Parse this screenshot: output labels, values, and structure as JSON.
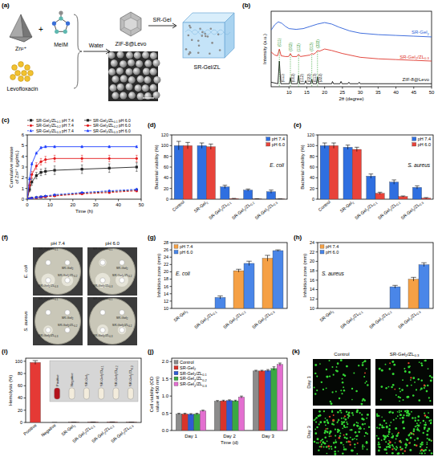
{
  "panel_labels": [
    "(a)",
    "(b)",
    "(c)",
    "(d)",
    "(e)",
    "(f)",
    "(g)",
    "(h)",
    "(i)",
    "(j)",
    "(k)"
  ],
  "schematic": {
    "reagents": [
      "Zn²⁺",
      "MeIM",
      "Levofloxacin"
    ],
    "plus": "+",
    "step1": "Water",
    "product": "ZIF-8@Levo",
    "step2": "SR-Gel",
    "final": "SR-Gel/ZL"
  },
  "plates": {
    "columns": [
      "pH 7.4",
      "pH 6.0"
    ],
    "rows": [
      "E. coli",
      "S. aureus"
    ],
    "disks": [
      "SR-Gel2/ZL0.1",
      "SR-Gel2",
      "SR-Gel2/ZL0.3",
      "SR-Gel2/ZL0.2"
    ]
  },
  "images": {
    "columns": [
      "Control",
      "SR-Gel2/ZL0.3"
    ],
    "rows": [
      "Day 1",
      "Day 3"
    ]
  },
  "chart_data": [
    {
      "type": "line",
      "x_label": "2θ (degree)",
      "y_label": "Intensity (a.u.)",
      "xlim": [
        5,
        50
      ],
      "xticks": [
        10,
        15,
        20,
        25,
        30,
        35,
        40,
        45,
        50
      ],
      "ylim": [
        0,
        100
      ],
      "tick_labels": "x",
      "legend": "right",
      "series": [
        {
          "name": "SR-Gel2",
          "color": "#2b5fd9",
          "x": [
            5,
            6,
            7,
            8,
            9,
            10,
            12,
            14,
            16,
            18,
            20,
            22,
            24,
            27,
            30,
            35,
            40,
            45,
            50
          ],
          "values": [
            75,
            82,
            86,
            84,
            80,
            77,
            76,
            77,
            80,
            83,
            85,
            83,
            79,
            74,
            71,
            69,
            68,
            67,
            66
          ]
        },
        {
          "name": "SR-Gel2/ZL0.3",
          "color": "#e0352b",
          "x": [
            5,
            6,
            6.8,
            7.3,
            7.8,
            9,
            9.9,
            10.4,
            10.9,
            12.2,
            12.7,
            13.2,
            15.9,
            16.4,
            16.9,
            17.5,
            18,
            18.5,
            20,
            22,
            25,
            30,
            35,
            40,
            45,
            50
          ],
          "values": [
            46,
            42,
            41,
            50,
            41,
            40,
            40,
            44,
            40,
            40,
            43,
            40,
            42,
            44,
            43,
            45,
            48,
            47,
            50,
            48,
            44,
            39,
            37,
            36,
            35,
            34
          ],
          "peaks": [
            {
              "x": 7.3,
              "label": "(011)"
            },
            {
              "x": 10.4,
              "label": "(002)"
            },
            {
              "x": 12.7,
              "label": "(112)"
            },
            {
              "x": 16.4,
              "label": "(013)"
            },
            {
              "x": 18,
              "label": "(222)"
            }
          ]
        },
        {
          "name": "ZIF-8@Levo",
          "color": "#111111",
          "x": [
            5,
            6.9,
            7.3,
            7.7,
            10.1,
            10.4,
            10.7,
            12.4,
            12.7,
            13,
            14.4,
            14.7,
            15,
            16.1,
            16.4,
            16.7,
            17.7,
            18,
            18.3,
            22,
            22.2,
            22.5,
            24.3,
            24.6,
            24.9,
            26.5,
            26.8,
            27.1,
            29.4,
            29.7,
            30,
            35,
            40,
            45,
            50
          ],
          "values": [
            6,
            4,
            34,
            4,
            4,
            12,
            4,
            4,
            15,
            4,
            4,
            8,
            4,
            4,
            10,
            4,
            4,
            13,
            4,
            4,
            7,
            4,
            4,
            7,
            4,
            4,
            6,
            4,
            4,
            6,
            4,
            4,
            4,
            4,
            4
          ],
          "peaks": [
            {
              "x": 7.3,
              "label": "(011)"
            },
            {
              "x": 10.4,
              "label": "(002)"
            },
            {
              "x": 12.7,
              "label": "(112)"
            },
            {
              "x": 14.7,
              "label": "(022)"
            },
            {
              "x": 16.4,
              "label": "(013)"
            },
            {
              "x": 18,
              "label": "(222)"
            }
          ]
        }
      ]
    },
    {
      "type": "line",
      "x_label": "Time (h)",
      "y_label": "Cumulative release of Zn²⁺ (μg/mL)",
      "x": [
        0,
        1,
        2,
        4,
        6,
        8,
        12,
        24,
        36,
        48
      ],
      "xlim": [
        0,
        50
      ],
      "xticks": [
        0,
        10,
        20,
        30,
        40,
        50
      ],
      "ylim": [
        0,
        6
      ],
      "yticks": [
        0,
        1,
        2,
        3,
        4,
        5,
        6
      ],
      "legend": "top",
      "series": [
        {
          "name": "SR-Gel2/ZL0.1 pH 7.4",
          "color": "#222222",
          "line_style": "dashed",
          "marker": "square",
          "values": [
            0,
            0.05,
            0.1,
            0.15,
            0.2,
            0.25,
            0.35,
            0.55,
            0.7,
            0.85
          ],
          "errors": [
            0,
            0.02,
            0.03,
            0.03,
            0.04,
            0.04,
            0.05,
            0.06,
            0.08,
            0.1
          ]
        },
        {
          "name": "SR-Gel2/ZL0.1 pH 6.0",
          "color": "#222222",
          "line_style": "solid",
          "marker": "square",
          "values": [
            0,
            0.9,
            1.6,
            2.2,
            2.5,
            2.6,
            2.7,
            2.8,
            2.9,
            3.0
          ],
          "errors": [
            0,
            0.2,
            0.3,
            0.3,
            0.3,
            0.3,
            0.4,
            0.4,
            0.4,
            0.4
          ]
        },
        {
          "name": "SR-Gel2/ZL0.2 pH 7.4",
          "color": "#e41a1c",
          "line_style": "dashed",
          "marker": "circle",
          "values": [
            0,
            0.04,
            0.08,
            0.13,
            0.18,
            0.22,
            0.3,
            0.5,
            0.62,
            0.78
          ],
          "errors": [
            0,
            0.02,
            0.03,
            0.03,
            0.04,
            0.04,
            0.05,
            0.06,
            0.08,
            0.1
          ]
        },
        {
          "name": "SR-Gel2/ZL0.2 pH 6.0",
          "color": "#e41a1c",
          "line_style": "solid",
          "marker": "circle",
          "values": [
            0,
            1.3,
            2.3,
            3.1,
            3.5,
            3.7,
            3.8,
            3.8,
            3.8,
            3.8
          ],
          "errors": [
            0,
            0.2,
            0.3,
            0.3,
            0.3,
            0.3,
            0.3,
            0.3,
            0.3,
            0.3
          ]
        },
        {
          "name": "SR-Gel2/ZL0.3 pH 7.4",
          "color": "#1f3fff",
          "line_style": "dashed",
          "marker": "triangle",
          "values": [
            0,
            0.06,
            0.12,
            0.18,
            0.24,
            0.3,
            0.42,
            0.62,
            0.78,
            0.92
          ],
          "errors": [
            0,
            0.02,
            0.03,
            0.03,
            0.04,
            0.04,
            0.05,
            0.06,
            0.08,
            0.1
          ]
        },
        {
          "name": "SR-Gel2/ZL0.3 pH 6.0",
          "color": "#1f3fff",
          "line_style": "solid",
          "marker": "triangle",
          "values": [
            0,
            1.9,
            3.3,
            4.3,
            4.8,
            4.9,
            4.9,
            4.9,
            4.9,
            4.9
          ],
          "errors": [
            0,
            0.1,
            0.1,
            0.1,
            0.1,
            0.1,
            0.1,
            0.1,
            0.1,
            0.1
          ]
        }
      ]
    },
    {
      "type": "bar",
      "y_label": "Bacterial viability (%)",
      "categories": [
        "Control",
        "SR-Gel2",
        "SR-Gel2/ZL0.1",
        "SR-Gel2/ZL0.2",
        "SR-Gel2/ZL0.3"
      ],
      "ylim": [
        0,
        120
      ],
      "yticks": [
        0,
        20,
        40,
        60,
        80,
        100,
        120
      ],
      "legend": "upper right",
      "annotations": [
        "E. coli"
      ],
      "series": [
        {
          "name": "pH 7.4",
          "color": "#2f6fe0",
          "values": [
            100,
            100,
            23,
            17,
            14
          ],
          "errors": [
            8,
            5,
            3,
            2,
            3
          ]
        },
        {
          "name": "pH 6.0",
          "color": "#e8433a",
          "values": [
            100,
            98,
            1,
            0.5,
            0.3
          ],
          "errors": [
            6,
            5,
            0.5,
            0.3,
            0.2
          ]
        }
      ]
    },
    {
      "type": "bar",
      "y_label": "Bacterial viability (%)",
      "categories": [
        "Control",
        "SR-Gel2",
        "SR-Gel2/ZL0.1",
        "SR-Gel2/ZL0.2",
        "SR-Gel2/ZL0.3"
      ],
      "ylim": [
        0,
        120
      ],
      "yticks": [
        0,
        20,
        40,
        60,
        80,
        100,
        120
      ],
      "legend": "upper right",
      "annotations": [
        "S. aureus"
      ],
      "series": [
        {
          "name": "pH 7.4",
          "color": "#2f6fe0",
          "values": [
            100,
            97,
            43,
            32,
            22
          ],
          "errors": [
            5,
            4,
            4,
            4,
            3
          ]
        },
        {
          "name": "pH 6.0",
          "color": "#e8433a",
          "values": [
            100,
            93,
            11,
            5,
            2
          ],
          "errors": [
            5,
            4,
            2,
            1,
            1
          ]
        }
      ]
    },
    {
      "type": "bar",
      "y_label": "Inhibition zone (mm)",
      "categories": [
        "SR-Gel2",
        "SR-Gel2/ZL0.1",
        "SR-Gel2/ZL0.2",
        "SR-Gel2/ZL0.3"
      ],
      "ylim": [
        10,
        28
      ],
      "yticks": [
        10,
        12,
        14,
        16,
        18,
        20,
        22,
        24,
        26,
        28
      ],
      "legend": "upper left",
      "annotations": [
        "E. coli"
      ],
      "series": [
        {
          "name": "pH 7.4",
          "color": "#f5a045",
          "values": [
            null,
            null,
            20.3,
            23.7
          ],
          "errors": [
            null,
            null,
            0.4,
            0.8
          ]
        },
        {
          "name": "pH 6.0",
          "color": "#4a86e8",
          "values": [
            null,
            13.0,
            22.3,
            25.8
          ],
          "errors": [
            null,
            0.4,
            0.6,
            0.2
          ]
        }
      ]
    },
    {
      "type": "bar",
      "y_label": "Inhibition zone (mm)",
      "categories": [
        "SR-Gel2",
        "SR-Gel2/ZL0.1",
        "SR-Gel2/ZL0.2",
        "SR-Gel2/ZL0.3"
      ],
      "ylim": [
        10,
        24
      ],
      "yticks": [
        10,
        12,
        14,
        16,
        18,
        20,
        22,
        24
      ],
      "legend": "upper left",
      "annotations": [
        "S. aureus"
      ],
      "series": [
        {
          "name": "pH 7.4",
          "color": "#f5a045",
          "values": [
            null,
            null,
            null,
            16.2
          ],
          "errors": [
            null,
            null,
            null,
            0.4
          ]
        },
        {
          "name": "pH 6.0",
          "color": "#4a86e8",
          "values": [
            null,
            null,
            14.6,
            19.3
          ],
          "errors": [
            null,
            null,
            0.3,
            0.4
          ]
        }
      ]
    },
    {
      "type": "bar",
      "y_label": "Hemolysis (%)",
      "categories": [
        "Positive",
        "Negative",
        "SR-Gel2",
        "SR-Gel2/ZL0.1",
        "SR-Gel2/ZL0.2",
        "SR-Gel2/ZL0.3"
      ],
      "ylim": [
        0,
        105
      ],
      "yticks": [
        0,
        20,
        40,
        60,
        80,
        100
      ],
      "color": "#e53935",
      "values": [
        98,
        0,
        0.3,
        0.5,
        0.6,
        0.4
      ],
      "errors": [
        3,
        0,
        0.1,
        0.2,
        0.2,
        0.1
      ],
      "inset_labels": [
        "Positive",
        "Negative",
        "SR-Gel2",
        "SR-Gel2/ZL0.1",
        "SR-Gel2/ZL0.2",
        "SR-Gel2/ZL0.3"
      ]
    },
    {
      "type": "bar",
      "x_label": "Time (d)",
      "y_label": "Cell viability (OD value at 450 nm)",
      "categories": [
        "Day 1",
        "Day 2",
        "Day 3"
      ],
      "ylim": [
        0,
        2.1
      ],
      "yticks": [
        {
          "value": 0,
          "label": "0.0"
        },
        0.5,
        {
          "value": 1,
          "label": "1.0"
        },
        1.5,
        {
          "value": 2,
          "label": "2.0"
        }
      ],
      "legend": "upper left",
      "series": [
        {
          "name": "Control",
          "color": "#8c8c8c",
          "values": [
            0.48,
            0.85,
            1.73
          ],
          "errors": [
            0.02,
            0.02,
            0.02
          ]
        },
        {
          "name": "SR-Gel2",
          "color": "#d9342b",
          "values": [
            0.48,
            0.86,
            1.73
          ],
          "errors": [
            0.02,
            0.02,
            0.02
          ]
        },
        {
          "name": "SR-Gel2/ZL0.1",
          "color": "#2f5bd3",
          "values": [
            0.47,
            0.87,
            1.74
          ],
          "errors": [
            0.02,
            0.02,
            0.03
          ]
        },
        {
          "name": "SR-Gel2/ZL0.2",
          "color": "#3aa843",
          "values": [
            0.48,
            0.86,
            1.8
          ],
          "errors": [
            0.02,
            0.02,
            0.05
          ]
        },
        {
          "name": "SR-Gel2/ZL0.3",
          "color": "#e36fd0",
          "values": [
            0.57,
            0.97,
            1.92
          ],
          "errors": [
            0.02,
            0.03,
            0.04
          ]
        }
      ]
    }
  ]
}
